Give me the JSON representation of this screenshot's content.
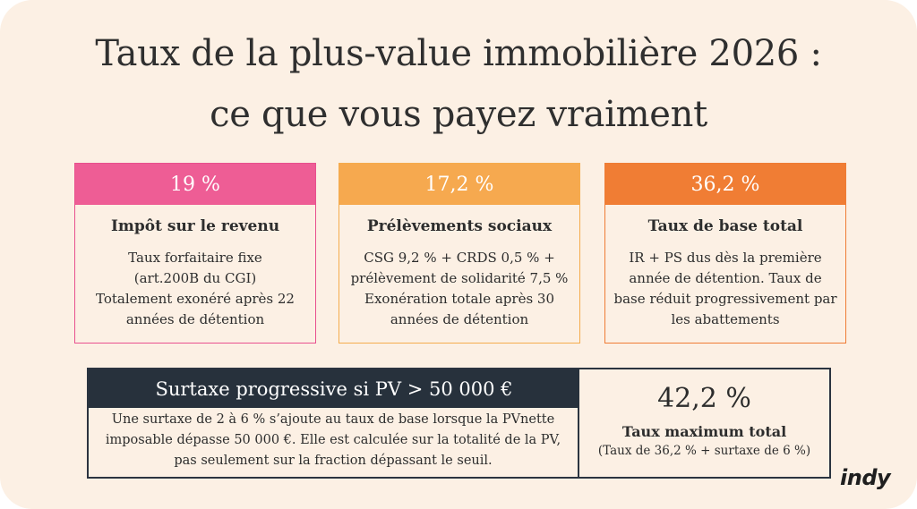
{
  "title": {
    "line1": "Taux de la plus-value immobilière 2026 :",
    "line2": "ce que vous payez vraiment"
  },
  "cards": [
    {
      "rate": "19 %",
      "heading": "Impôt sur le revenu",
      "lines": [
        "Taux forfaitaire fixe",
        "(art.200B du CGI)",
        "Totalement exonéré après 22",
        "années de détention"
      ],
      "color": "#ee5d95"
    },
    {
      "rate": "17,2 %",
      "heading": "Prélèvements sociaux",
      "lines": [
        "CSG 9,2 % + CRDS 0,5 % +",
        "prélèvement de solidarité 7,5 %",
        "Exonération totale après 30",
        "années de détention"
      ],
      "color": "#f6a94f"
    },
    {
      "rate": "36,2 %",
      "heading": "Taux de base total",
      "lines": [
        "IR + PS dus dès la première",
        "année de détention. Taux de",
        "base réduit progressivement par",
        "les abattements"
      ],
      "color": "#f07d34"
    }
  ],
  "surtaxe": {
    "heading": "Surtaxe progressive si PV > 50 000 €",
    "lines": [
      "Une surtaxe de 2 à 6 % s’ajoute au taux de base lorsque la PVnette",
      "imposable dépasse 50 000 €. Elle est calculée sur la totalité de la PV,",
      "pas seulement sur la fraction dépassant le seuil."
    ],
    "max_rate": "42,2 %",
    "max_label": "Taux maximum total",
    "max_sub": "(Taux de 36,2 % + surtaxe de 6 %)"
  },
  "logo": "indy"
}
